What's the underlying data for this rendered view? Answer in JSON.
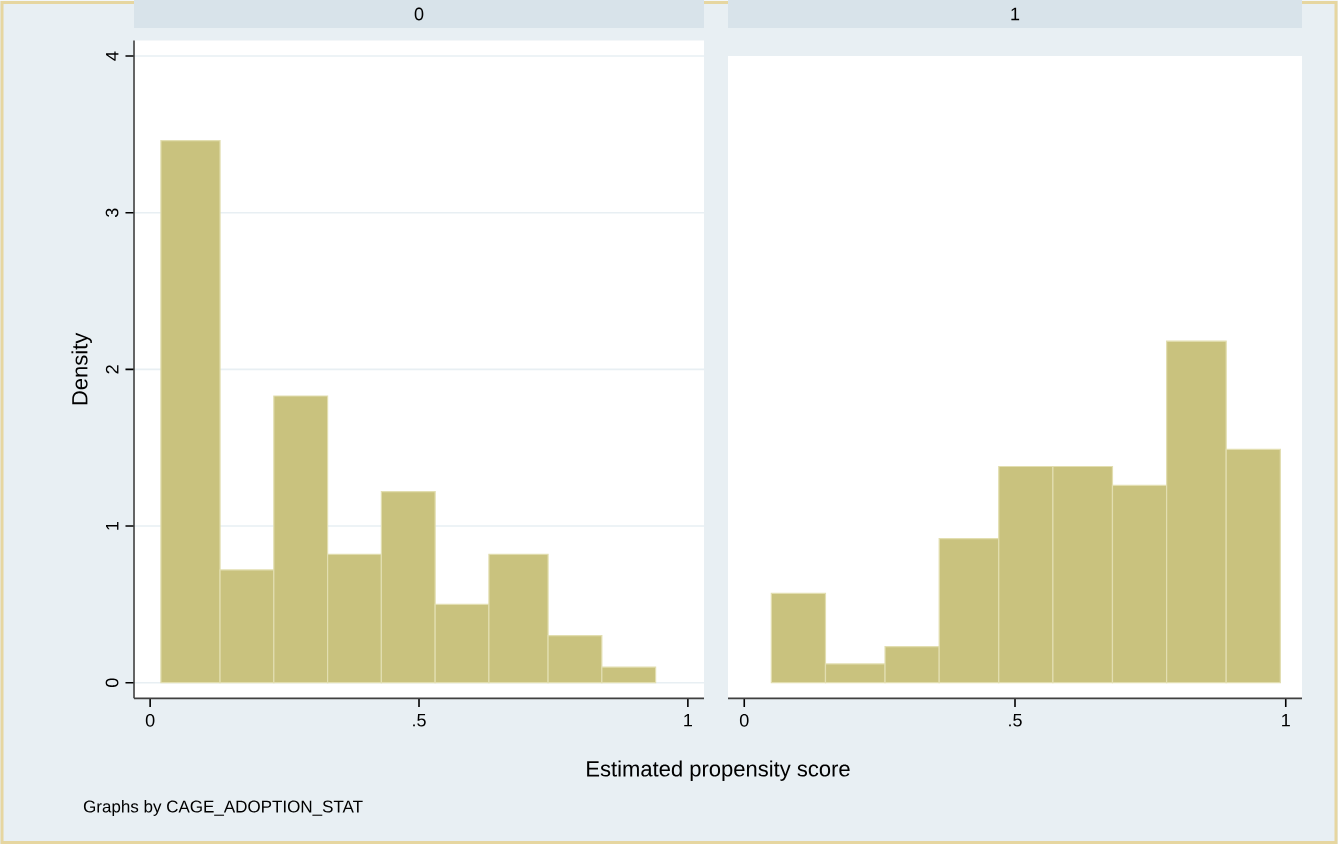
{
  "chart_data": [
    {
      "type": "histogram",
      "title": "0",
      "xlabel": "Estimated propensity score",
      "ylabel": "Density",
      "annotations": [
        "Graphs by CAGE_ADOPTION_STAT"
      ],
      "bins": [
        0.02,
        0.13,
        0.23,
        0.33,
        0.43,
        0.53,
        0.63,
        0.74,
        0.84,
        0.94
      ],
      "values": [
        3.46,
        0.72,
        1.83,
        0.82,
        1.22,
        0.5,
        0.82,
        0.3,
        0.1
      ],
      "color": "#c9c27e",
      "xlim": [
        -0.03,
        1.03
      ],
      "ylim": [
        -0.1,
        4.1
      ],
      "xticks": [
        0,
        {
          "value": 0.5,
          "label": ".5"
        },
        1
      ],
      "yticks": [
        0,
        1,
        2,
        3,
        4
      ],
      "grid": "y"
    },
    {
      "type": "histogram",
      "title": "1",
      "bins": [
        0.05,
        0.15,
        0.26,
        0.36,
        0.47,
        0.57,
        0.68,
        0.78,
        0.89,
        0.99
      ],
      "values": [
        0.57,
        0.12,
        0.23,
        0.92,
        1.38,
        1.38,
        1.26,
        2.18,
        1.49
      ],
      "color": "#c9c27e",
      "xlim": [
        -0.03,
        1.03
      ],
      "ylim": [
        -0.1,
        4
      ],
      "xticks": [
        0,
        {
          "value": 0.5,
          "label": ".5"
        },
        1
      ],
      "yticks": [
        0,
        1,
        2,
        3,
        4
      ],
      "grid": "y",
      "tick_labels": "x"
    }
  ]
}
